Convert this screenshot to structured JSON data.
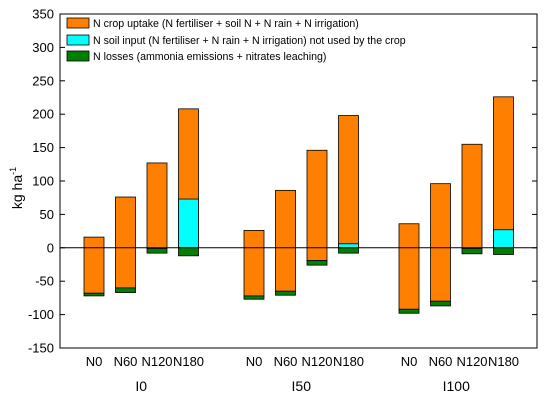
{
  "chart_data": {
    "type": "bar",
    "stacked": true,
    "ylabel": "kg ha",
    "ylabel_superscript": "-1",
    "ylim": [
      -150,
      350
    ],
    "yticks": [
      -150,
      -100,
      -50,
      0,
      50,
      100,
      150,
      200,
      250,
      300,
      350
    ],
    "zero_line": true,
    "grid": false,
    "legend_position": "top-left",
    "groups": [
      "I0",
      "I50",
      "I100"
    ],
    "categories": [
      "N0",
      "N60",
      "N120",
      "N180"
    ],
    "series": [
      {
        "name": "N crop uptake (N fertiliser + soil N + N rain + N irrigation)",
        "color": "#ff8000",
        "note": "bar spans from the bottom value to the top value",
        "bottom": [
          [
            -68,
            -60,
            -1,
            0
          ],
          [
            -72,
            -65,
            -19,
            0
          ],
          [
            -92,
            -80,
            -1,
            0
          ]
        ],
        "top": [
          [
            16,
            76,
            127,
            208
          ],
          [
            26,
            86,
            146,
            198
          ],
          [
            36,
            96,
            155,
            226
          ]
        ]
      },
      {
        "name": "N soil input (N fertiliser + N rain + N irrigation) not used by the crop",
        "color": "#00ffff",
        "bottom": [
          [
            0,
            0,
            0,
            0
          ],
          [
            0,
            0,
            0,
            0
          ],
          [
            0,
            0,
            0,
            0
          ]
        ],
        "top": [
          [
            0,
            0,
            0,
            73
          ],
          [
            0,
            0,
            0,
            6
          ],
          [
            0,
            0,
            0,
            27
          ]
        ]
      },
      {
        "name": "N losses (ammonia emissions + nitrates leaching)",
        "color": "#008000",
        "bottom": [
          [
            -72,
            -67,
            -8,
            -12
          ],
          [
            -77,
            -71,
            -26,
            -8
          ],
          [
            -98,
            -87,
            -9,
            -10
          ]
        ],
        "top": [
          [
            -68,
            -60,
            -1,
            0
          ],
          [
            -72,
            -65,
            -19,
            0
          ],
          [
            -92,
            -80,
            -1,
            0
          ]
        ]
      }
    ]
  }
}
